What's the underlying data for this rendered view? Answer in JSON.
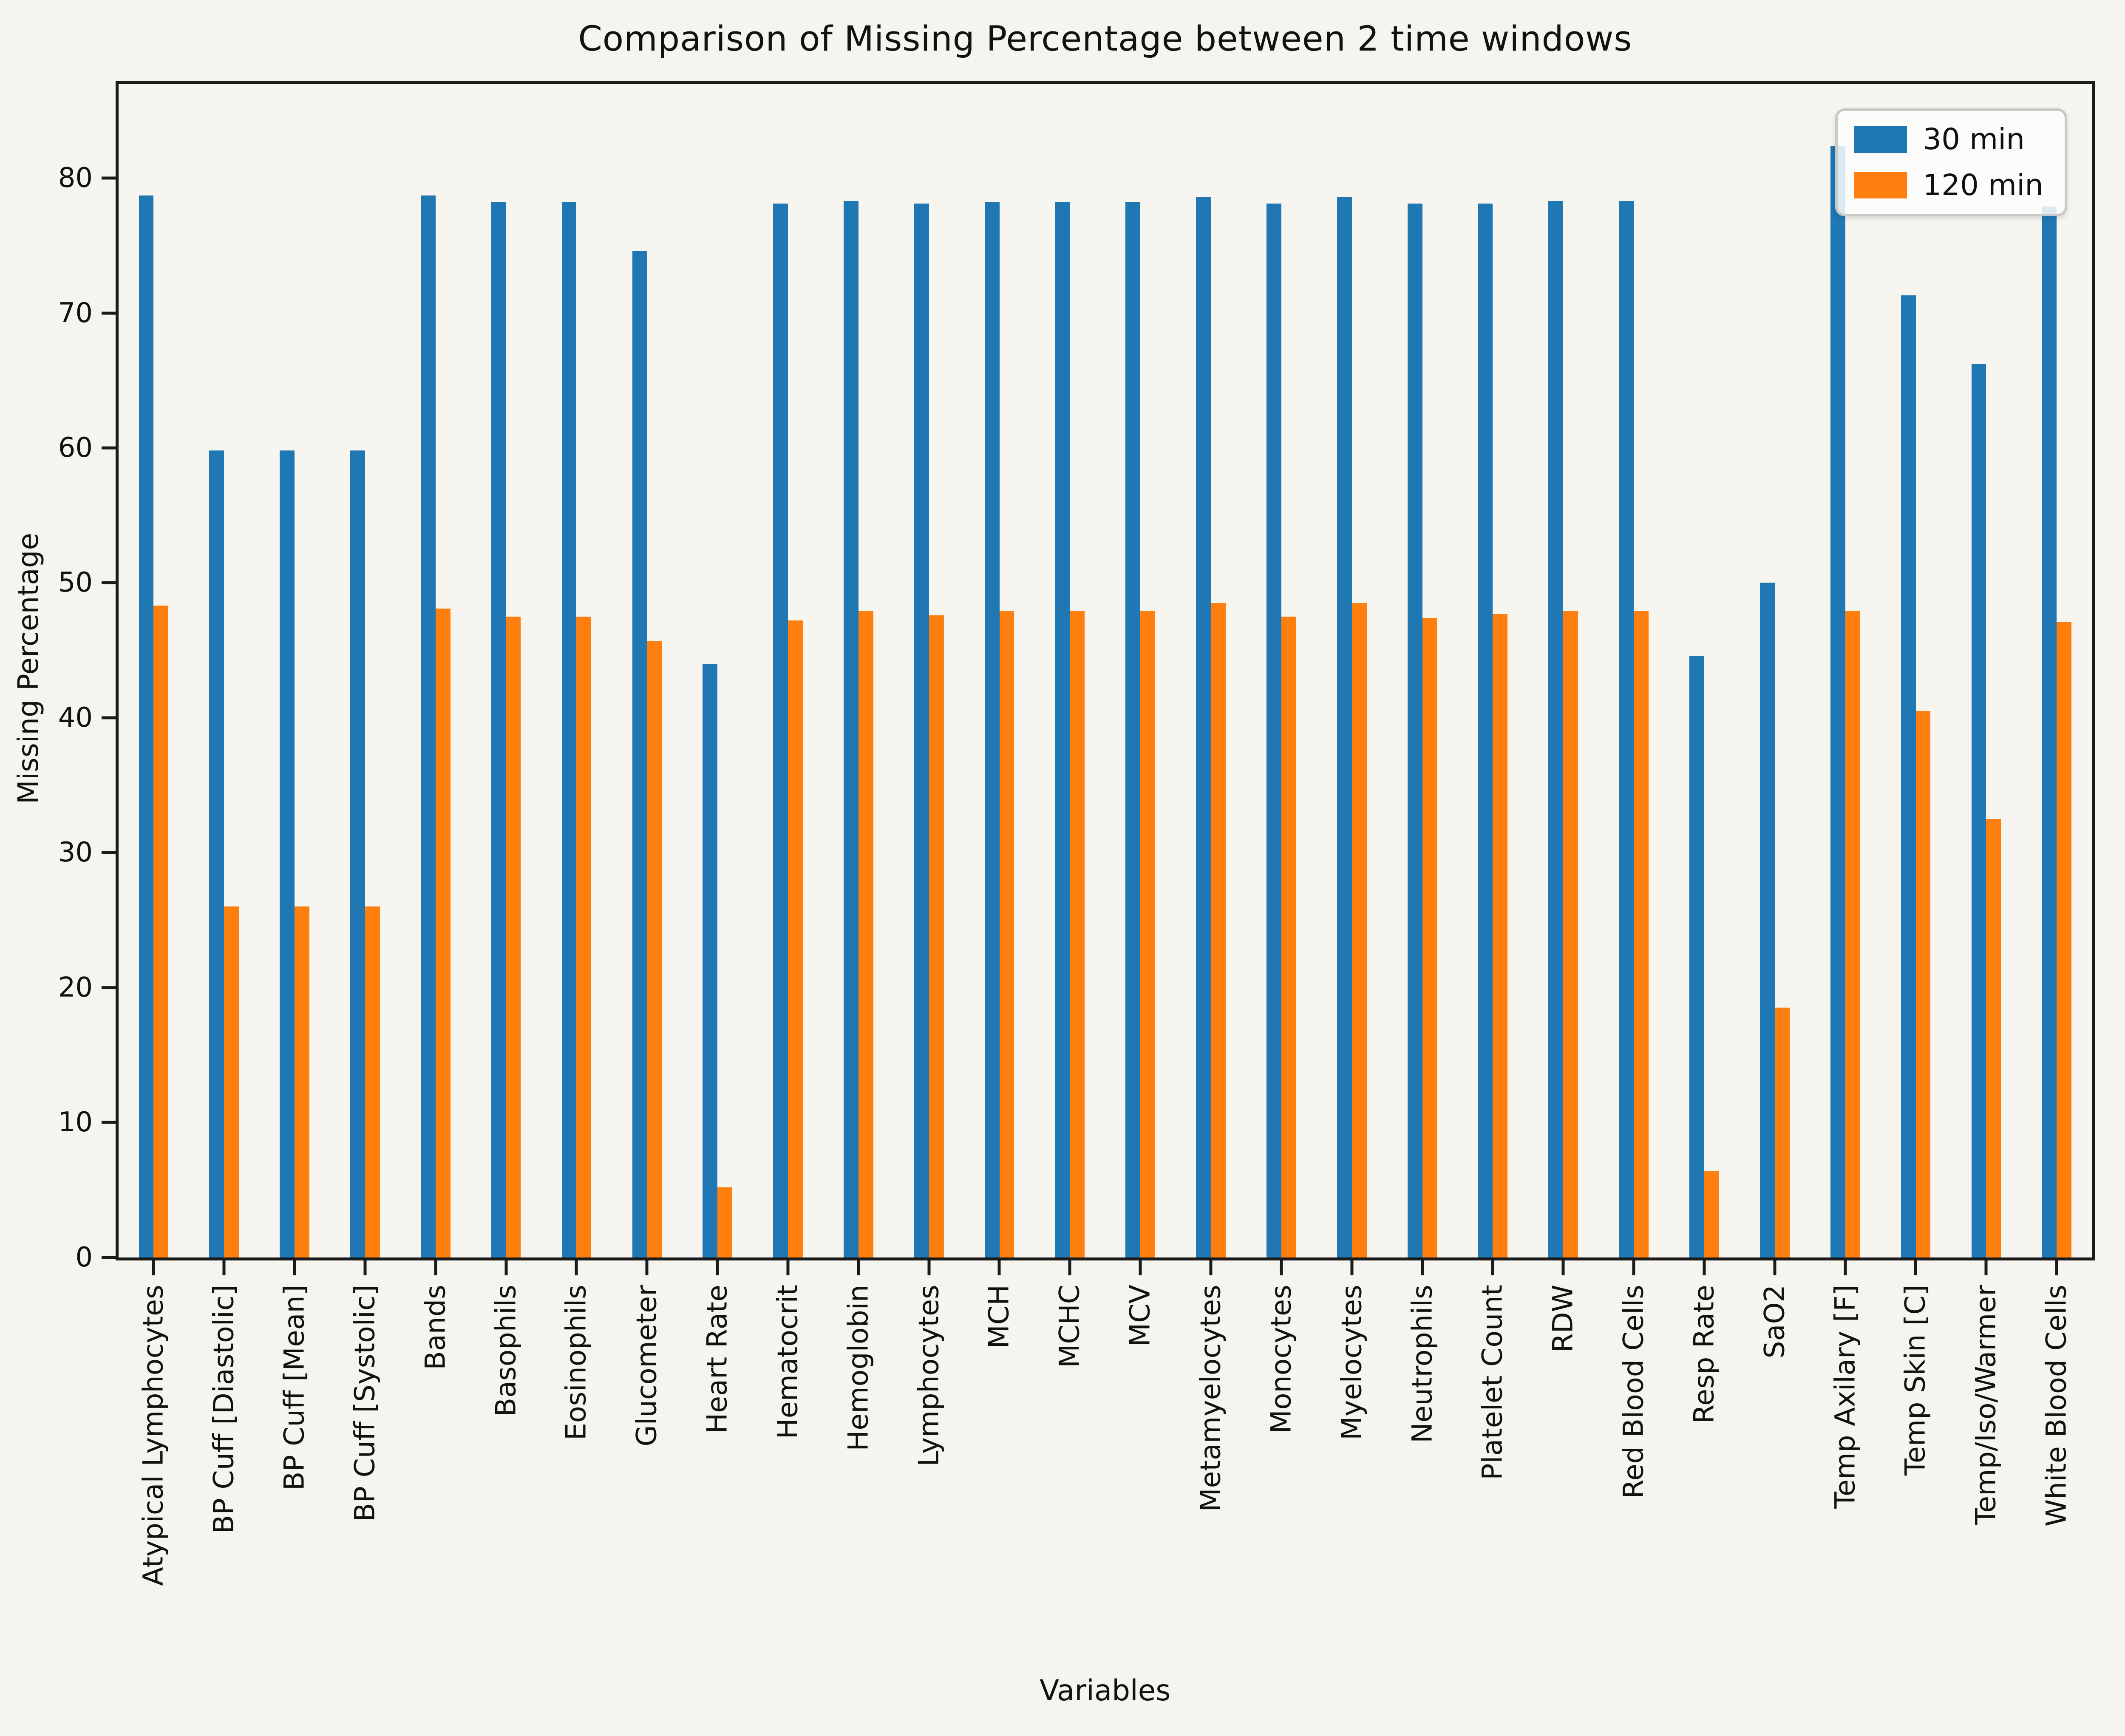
{
  "figure": {
    "title": "Comparison of Missing Percentage between 2 time windows",
    "background_color": "#f6f4ef"
  },
  "chart_data": {
    "type": "bar",
    "title": "Comparison of Missing Percentage between 2 time windows",
    "xlabel": "Variables",
    "ylabel": "Missing Percentage",
    "ylim": [
      0,
      87
    ],
    "yticks": [
      0,
      10,
      20,
      30,
      40,
      50,
      60,
      70,
      80
    ],
    "grid": false,
    "legend_position": "upper right",
    "x_tick_rotation": 90,
    "categories": [
      "Atypical Lymphocytes",
      "BP Cuff [Diastolic]",
      "BP Cuff [Mean]",
      "BP Cuff [Systolic]",
      "Bands",
      "Basophils",
      "Eosinophils",
      "Glucometer",
      "Heart Rate",
      "Hematocrit",
      "Hemoglobin",
      "Lymphocytes",
      "MCH",
      "MCHC",
      "MCV",
      "Metamyelocytes",
      "Monocytes",
      "Myelocytes",
      "Neutrophils",
      "Platelet Count",
      "RDW",
      "Red Blood Cells",
      "Resp Rate",
      "SaO2",
      "Temp Axilary [F]",
      "Temp Skin [C]",
      "Temp/Iso/Warmer",
      "White Blood Cells"
    ],
    "series": [
      {
        "name": "30 min",
        "color": "#1f77b4",
        "values": [
          78.7,
          59.8,
          59.8,
          59.8,
          78.7,
          78.2,
          78.2,
          74.6,
          44.0,
          78.1,
          78.3,
          78.1,
          78.2,
          78.2,
          78.2,
          78.6,
          78.1,
          78.6,
          78.1,
          78.1,
          78.3,
          78.3,
          44.6,
          50.0,
          82.4,
          71.3,
          66.2,
          77.9
        ]
      },
      {
        "name": "120 min",
        "color": "#ff7f0e",
        "values": [
          48.3,
          26.0,
          26.0,
          26.0,
          48.1,
          47.5,
          47.5,
          45.7,
          5.2,
          47.2,
          47.9,
          47.6,
          47.9,
          47.9,
          47.9,
          48.5,
          47.5,
          48.5,
          47.4,
          47.7,
          47.9,
          47.9,
          6.4,
          18.5,
          47.9,
          40.5,
          32.5,
          47.1
        ]
      }
    ]
  },
  "legend": {
    "items": [
      {
        "label": "30 min",
        "color": "#1f77b4"
      },
      {
        "label": "120 min",
        "color": "#ff7f0e"
      }
    ]
  },
  "colors": {
    "series_30min": "#1f77b4",
    "series_120min": "#ff7f0e",
    "axis": "#1a1a1a",
    "background": "#f6f4ef"
  }
}
